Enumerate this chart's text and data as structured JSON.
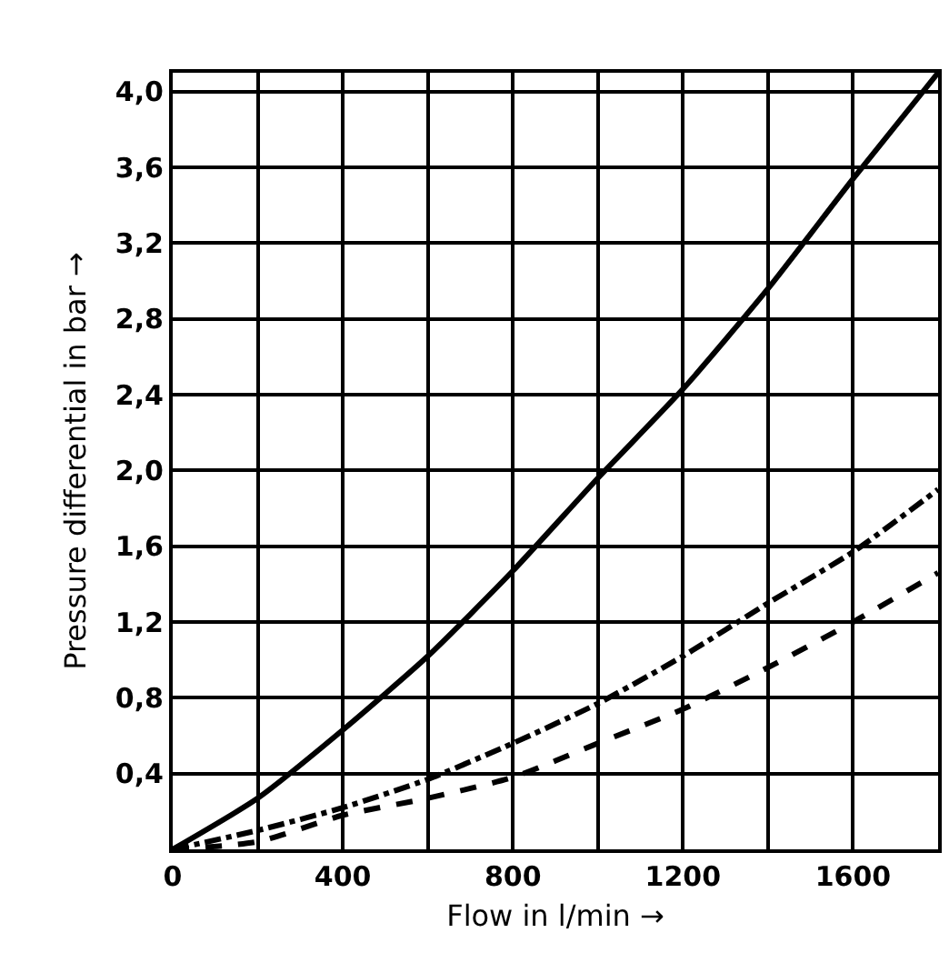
{
  "chart_data": {
    "type": "line",
    "xlabel": "Flow in l/min →",
    "ylabel": "Pressure differential in bar →",
    "x": [
      0,
      200,
      400,
      600,
      800,
      1000,
      1200,
      1400,
      1600,
      1800
    ],
    "series": [
      {
        "color": "#000000",
        "line_style": "solid",
        "values": [
          0,
          0.27,
          0.63,
          1.02,
          1.47,
          1.96,
          2.43,
          2.96,
          3.54,
          4.1
        ]
      },
      {
        "color": "#000000",
        "line_style": "dashdot",
        "values": [
          0,
          0.1,
          0.22,
          0.37,
          0.56,
          0.77,
          1.02,
          1.3,
          1.57,
          1.9
        ]
      },
      {
        "color": "#000000",
        "line_style": "dashed",
        "values": [
          0,
          0.04,
          0.18,
          0.27,
          0.38,
          0.56,
          0.74,
          0.96,
          1.2,
          1.46
        ]
      }
    ],
    "xlim": [
      0,
      1800
    ],
    "ylim": [
      0,
      4.1
    ],
    "xticks": [
      0,
      {
        "value": 200,
        "label": null
      },
      400,
      {
        "value": 600,
        "label": null
      },
      800,
      {
        "value": 1000,
        "label": null
      },
      1200,
      {
        "value": 1400,
        "label": null
      },
      1600
    ],
    "yticks": [
      {
        "value": 0,
        "label": null
      },
      {
        "value": 0.4,
        "label": "0,4"
      },
      {
        "value": 0.8,
        "label": "0,8"
      },
      {
        "value": 1.2,
        "label": "1,2"
      },
      {
        "value": 1.6,
        "label": "1,6"
      },
      {
        "value": 2.0,
        "label": "2,0"
      },
      {
        "value": 2.4,
        "label": "2,4"
      },
      {
        "value": 2.8,
        "label": "2,8"
      },
      {
        "value": 3.2,
        "label": "3,2"
      },
      {
        "value": 3.6,
        "label": "3,6"
      },
      {
        "value": 4.0,
        "label": "4,0"
      }
    ],
    "grid": true,
    "marker": "none"
  }
}
